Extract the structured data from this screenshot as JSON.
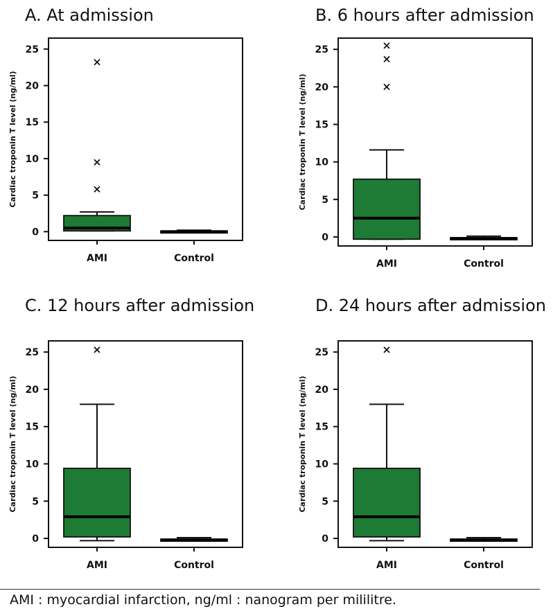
{
  "chart_data": [
    {
      "type": "box",
      "title": "A. At admission",
      "ylabel": "Cardiac troponin T level (ng/ml)",
      "ylim": [
        -1.2,
        26.5
      ],
      "yticks": [
        0,
        5,
        10,
        15,
        20,
        25
      ],
      "categories": [
        "AMI",
        "Control"
      ],
      "boxes": [
        {
          "category": "AMI",
          "whisker_low": 0.1,
          "q1": 0.1,
          "median": 0.5,
          "q3": 2.2,
          "whisker_high": 2.7,
          "outliers": [
            23.2,
            9.5,
            5.8
          ]
        },
        {
          "category": "Control",
          "whisker_low": -0.1,
          "q1": -0.1,
          "median": 0.0,
          "q3": 0.1,
          "whisker_high": 0.2,
          "outliers": []
        }
      ]
    },
    {
      "type": "box",
      "title": "B. 6 hours after admission",
      "ylabel": "Cardiac troponin T level (ng/ml)",
      "ylim": [
        -1.2,
        26.5
      ],
      "yticks": [
        0,
        5,
        10,
        15,
        20,
        25
      ],
      "categories": [
        "AMI",
        "Control"
      ],
      "boxes": [
        {
          "category": "AMI",
          "whisker_low": -0.3,
          "q1": -0.3,
          "median": 2.5,
          "q3": 7.7,
          "whisker_high": 11.6,
          "outliers": [
            25.5,
            23.7,
            20.0
          ]
        },
        {
          "category": "Control",
          "whisker_low": -0.3,
          "q1": -0.3,
          "median": -0.2,
          "q3": -0.1,
          "whisker_high": 0.1,
          "outliers": []
        }
      ]
    },
    {
      "type": "box",
      "title": "C. 12 hours after admission",
      "ylabel": "Cardiac troponin T level (ng/ml)",
      "ylim": [
        -1.2,
        26.5
      ],
      "yticks": [
        0,
        5,
        10,
        15,
        20,
        25
      ],
      "categories": [
        "AMI",
        "Control"
      ],
      "boxes": [
        {
          "category": "AMI",
          "whisker_low": -0.3,
          "q1": 0.2,
          "median": 2.9,
          "q3": 9.4,
          "whisker_high": 18.0,
          "outliers": [
            25.3
          ]
        },
        {
          "category": "Control",
          "whisker_low": -0.3,
          "q1": -0.3,
          "median": -0.2,
          "q3": -0.1,
          "whisker_high": 0.1,
          "outliers": []
        }
      ]
    },
    {
      "type": "box",
      "title": "D. 24 hours after admission",
      "ylabel": "Cardiac troponin T level (ng/ml)",
      "ylim": [
        -1.2,
        26.5
      ],
      "yticks": [
        0,
        5,
        10,
        15,
        20,
        25
      ],
      "categories": [
        "AMI",
        "Control"
      ],
      "boxes": [
        {
          "category": "AMI",
          "whisker_low": -0.3,
          "q1": 0.2,
          "median": 2.9,
          "q3": 9.4,
          "whisker_high": 18.0,
          "outliers": [
            25.3
          ]
        },
        {
          "category": "Control",
          "whisker_low": -0.3,
          "q1": -0.3,
          "median": -0.2,
          "q3": -0.1,
          "whisker_high": 0.1,
          "outliers": []
        }
      ]
    }
  ],
  "colors": {
    "box_fill": "#1d7b35",
    "median_line": "#000000"
  },
  "footer": {
    "note": "AMI : myocardial infarction, ng/ml : nanogram per mililitre."
  }
}
